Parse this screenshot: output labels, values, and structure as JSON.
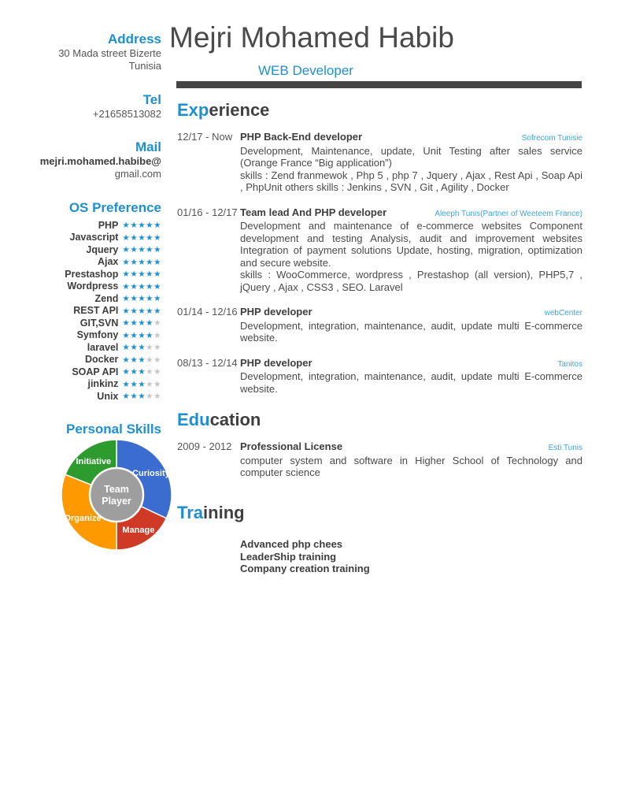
{
  "colors": {
    "accent_blue": "#1f90cf",
    "company_blue": "#3fa4dc",
    "heading_dark": "#3f3f3f",
    "body_text": "#4a4a4a",
    "muted_text": "#555555",
    "title_bar": "#454545",
    "star_filled": "#1f90cf",
    "star_empty": "#c5c5c5"
  },
  "header": {
    "name": "Mejri Mohamed Habib",
    "subtitle": "WEB Developer"
  },
  "sidebar": {
    "address": {
      "label": "Address",
      "line1": "30 Mada street Bizerte",
      "line2": "Tunisia"
    },
    "tel": {
      "label": "Tel",
      "value": "+21658513082"
    },
    "mail": {
      "label": "Mail",
      "line1": "mejri.mohamed.habibe@",
      "line2": "gmail.com"
    },
    "os_preference": {
      "label": "OS Preference",
      "max_rating": 5,
      "skills": [
        {
          "name": "PHP",
          "rating": 5
        },
        {
          "name": "Javascript",
          "rating": 5
        },
        {
          "name": "Jquery",
          "rating": 5
        },
        {
          "name": "Ajax",
          "rating": 5
        },
        {
          "name": "Prestashop",
          "rating": 5
        },
        {
          "name": "Wordpress",
          "rating": 5
        },
        {
          "name": "Zend",
          "rating": 5
        },
        {
          "name": "REST API",
          "rating": 5
        },
        {
          "name": "GIT,SVN",
          "rating": 4
        },
        {
          "name": "Symfony",
          "rating": 4
        },
        {
          "name": "laravel",
          "rating": 3
        },
        {
          "name": "Docker",
          "rating": 3
        },
        {
          "name": "SOAP API",
          "rating": 3
        },
        {
          "name": "jinkinz",
          "rating": 3
        },
        {
          "name": "Unix",
          "rating": 3
        }
      ]
    },
    "personal_skills": {
      "label": "Personal Skills"
    }
  },
  "chart_data": {
    "type": "pie",
    "title": "Personal Skills",
    "donut": true,
    "start_angle_deg": 0,
    "center_label": "Team Player",
    "center_color": "#9E9E9E",
    "slices": [
      {
        "label": "Curiosity",
        "value": 32,
        "color": "#3B6CD0"
      },
      {
        "label": "Manage",
        "value": 18,
        "color": "#CF3A27"
      },
      {
        "label": "Organize",
        "value": 31,
        "color": "#FF9900"
      },
      {
        "label": "Initiative",
        "value": 19,
        "color": "#2E9B2E"
      }
    ]
  },
  "experience": {
    "heading_blue": "Exp",
    "heading_rest": "erience",
    "entries": [
      {
        "date": "12/17 - Now",
        "title": "PHP Back-End developer",
        "company": "Sofrecom Tunisie",
        "description": "Development, Maintenance, update, Unit Testing after sales service (Orange France “Big application”)",
        "skills": "skills : Zend franmewok , Php 5 , php 7 , Jquery , Ajax , Rest Api , Soap Api , PhpUnit others skills : Jenkins , SVN , Git , Agility , Docker"
      },
      {
        "date": "01/16 - 12/17",
        "title": "Team lead And PHP developer",
        "company": "Aleeph Tunis(Partner of Weeteem France)",
        "description": "Development and maintenance of e-commerce websites Component development and testing Analysis, audit and improvement websites Integration of payment solutions Update, hosting, migration, optimization and secure website.",
        "skills": "skills : WooCommerce, wordpress , Prestashop (all version), PHP5,7 , jQuery , Ajax , CSS3 , SEO. Laravel"
      },
      {
        "date": "01/14 - 12/16",
        "title": "PHP developer",
        "company": "webCenter",
        "description": "Development, integration, maintenance, audit, update multi E-commerce website.",
        "skills": ""
      },
      {
        "date": "08/13 - 12/14",
        "title": "PHP developer",
        "company": "Tanitos",
        "description": "Development, integration, maintenance, audit, update multi E-commerce website.",
        "skills": ""
      }
    ]
  },
  "education": {
    "heading_blue": "Edu",
    "heading_rest": "cation",
    "entries": [
      {
        "date": "2009 - 2012",
        "title": "Professional License",
        "company": "Esti Tunis",
        "description": "computer system and software in Higher School of Technology and computer science",
        "skills": ""
      }
    ]
  },
  "training": {
    "heading_blue": "Tra",
    "heading_rest": "ining",
    "items": [
      "Advanced php chees",
      "LeaderShip training",
      "Company creation training"
    ]
  }
}
